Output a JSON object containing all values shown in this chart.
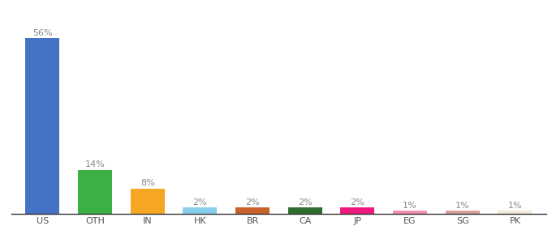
{
  "categories": [
    "US",
    "OTH",
    "IN",
    "HK",
    "BR",
    "CA",
    "JP",
    "EG",
    "SG",
    "PK"
  ],
  "values": [
    56,
    14,
    8,
    2,
    2,
    2,
    2,
    1,
    1,
    1
  ],
  "bar_colors": [
    "#4472c4",
    "#3cb043",
    "#f5a623",
    "#87ceeb",
    "#c8622a",
    "#2d6e2d",
    "#f0197d",
    "#f48fb1",
    "#d9a09a",
    "#f0ecd8"
  ],
  "background_color": "#ffffff",
  "label_fontsize": 8,
  "tick_fontsize": 8,
  "ylim": [
    0,
    62
  ]
}
